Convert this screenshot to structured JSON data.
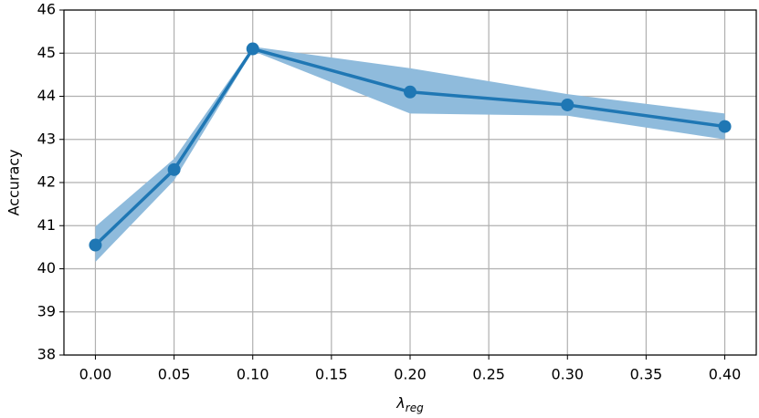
{
  "chart_data": {
    "type": "line",
    "xlabel": {
      "text": "λ",
      "subscript": "reg"
    },
    "ylabel": "Accuracy",
    "x": [
      0.0,
      0.05,
      0.1,
      0.2,
      0.3,
      0.4
    ],
    "series": [
      {
        "color": "#1f77b4",
        "band_color": "#8fbbdc",
        "values": [
          40.55,
          42.3,
          45.1,
          44.1,
          43.8,
          43.3
        ],
        "lower": [
          40.16,
          42.05,
          45.05,
          43.6,
          43.55,
          43.0
        ],
        "upper": [
          40.98,
          42.55,
          45.15,
          44.65,
          44.05,
          43.6
        ]
      }
    ],
    "xlim": [
      -0.02,
      0.42
    ],
    "ylim": [
      38,
      46
    ],
    "xticks": [
      {
        "value": 0.0,
        "label": "0.00"
      },
      {
        "value": 0.05,
        "label": "0.05"
      },
      {
        "value": 0.1,
        "label": "0.10"
      },
      {
        "value": 0.15,
        "label": "0.15"
      },
      {
        "value": 0.2,
        "label": "0.20"
      },
      {
        "value": 0.25,
        "label": "0.25"
      },
      {
        "value": 0.3,
        "label": "0.30"
      },
      {
        "value": 0.35,
        "label": "0.35"
      },
      {
        "value": 0.4,
        "label": "0.40"
      }
    ],
    "yticks": [
      38,
      39,
      40,
      41,
      42,
      43,
      44,
      45,
      46
    ],
    "grid": true
  }
}
